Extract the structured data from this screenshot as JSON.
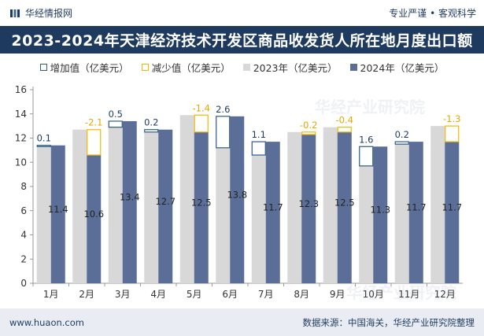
{
  "header": {
    "brand_name": "华经情报网",
    "slogan": "专业严谨 • 客观科学"
  },
  "footer": {
    "website": "www.huaon.com",
    "source": "数据来源：中国海关，华经产业研究院整理"
  },
  "watermark": "华经产业研究院",
  "colors": {
    "primary": "#1f3a5f",
    "series_2023": "#d8d8d8",
    "series_2024": "#5b6e98",
    "increase": "#2d5a87",
    "decrease": "#f2b705"
  },
  "chart_data": {
    "type": "bar",
    "title": "2023-2024年天津经济技术开发区商品收发货人所在地月度出口额",
    "categories": [
      "1月",
      "2月",
      "3月",
      "4月",
      "5月",
      "6月",
      "7月",
      "8月",
      "9月",
      "10月",
      "11月",
      "12月"
    ],
    "series": [
      {
        "name": "2023年（亿美元）",
        "values": [
          11.3,
          12.7,
          12.9,
          12.5,
          13.9,
          11.2,
          10.6,
          12.5,
          12.9,
          9.7,
          11.5,
          13.0
        ]
      },
      {
        "name": "2024年（亿美元）",
        "values": [
          11.4,
          10.6,
          13.4,
          12.7,
          12.5,
          13.8,
          11.7,
          12.3,
          12.5,
          11.3,
          11.7,
          11.7
        ]
      }
    ],
    "change_labels": [
      "0.1",
      "-2.1",
      "0.5",
      "0.2",
      "-1.4",
      "2.6",
      "1.1",
      "-0.2",
      "-0.4",
      "1.6",
      "0.2",
      "-1.3"
    ],
    "legend": [
      "增加值（亿美元）",
      "减少值（亿美元）",
      "2023年（亿美元）",
      "2024年（亿美元）"
    ],
    "legend_position": "top",
    "ylim": [
      0,
      16
    ],
    "yticks": [
      0,
      2,
      4,
      6,
      8,
      10,
      12,
      14,
      16
    ],
    "grid": false
  }
}
